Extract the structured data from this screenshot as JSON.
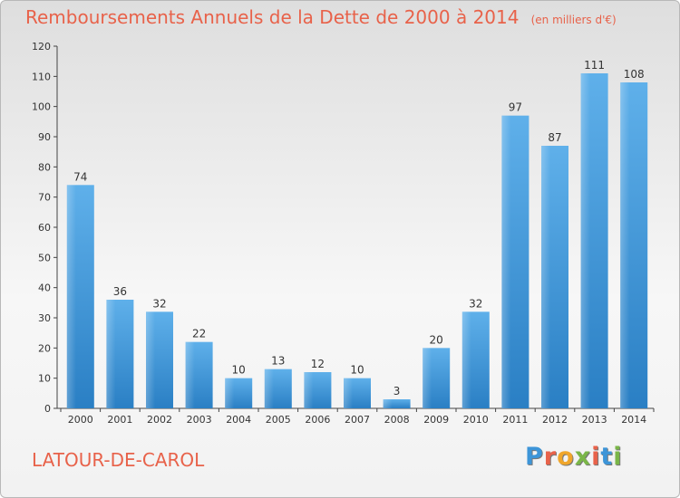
{
  "chart_data": {
    "type": "bar",
    "title": "Remboursements Annuels de la Dette de 2000 à 2014",
    "subtitle": "(en milliers d'€)",
    "categories": [
      "2000",
      "2001",
      "2002",
      "2003",
      "2004",
      "2005",
      "2006",
      "2007",
      "2008",
      "2009",
      "2010",
      "2011",
      "2012",
      "2013",
      "2014"
    ],
    "values": [
      74,
      36,
      32,
      22,
      10,
      13,
      12,
      10,
      3,
      20,
      32,
      97,
      87,
      111,
      108
    ],
    "ylim": [
      0,
      120
    ],
    "yticks": [
      0,
      10,
      20,
      30,
      40,
      50,
      60,
      70,
      80,
      90,
      100,
      110,
      120
    ],
    "grid": false,
    "bar_color": "#3d95d8"
  },
  "footer": {
    "town": "LATOUR-DE-CAROL",
    "logo": "Proxiti"
  },
  "colors": {
    "title": "#e8624a",
    "logo_letters": [
      "#3d95d8",
      "#e8624a",
      "#f0a62b",
      "#7ab648",
      "#e8624a",
      "#3d95d8",
      "#7ab648"
    ]
  }
}
